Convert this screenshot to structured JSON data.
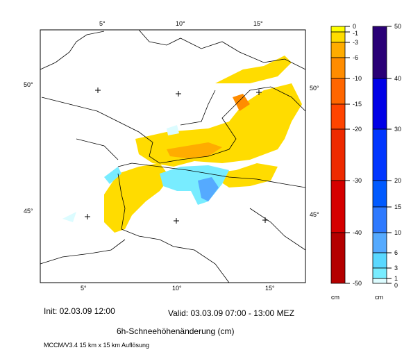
{
  "map": {
    "top_lon_labels": [
      "5°",
      "10°",
      "15°"
    ],
    "bottom_lon_labels": [
      "5°",
      "10°",
      "15°"
    ],
    "left_lat_labels": [
      "50°",
      "45°"
    ],
    "right_lat_labels": [
      "50°",
      "45°"
    ]
  },
  "legend_negative": {
    "unit": "cm",
    "ticks": [
      "0",
      "-1",
      "-3",
      "-6",
      "-10",
      "-15",
      "-20",
      "-30",
      "-40",
      "-50"
    ],
    "colors": [
      "#ffff00",
      "#ffdc00",
      "#ffac00",
      "#ff8c00",
      "#ff6600",
      "#ff4400",
      "#ee2a00",
      "#d50000",
      "#b40000"
    ]
  },
  "legend_positive": {
    "unit": "cm",
    "ticks": [
      "50",
      "40",
      "30",
      "20",
      "15",
      "10",
      "6",
      "3",
      "1",
      "0"
    ],
    "colors": [
      "#2a0077",
      "#0000e6",
      "#0036ff",
      "#005aff",
      "#2e7aff",
      "#55aaff",
      "#5ad8ff",
      "#78ecff",
      "#dcfcff"
    ]
  },
  "footer": {
    "init": "Init: 02.03.09 12:00",
    "valid": "Valid: 03.03.09 07:00 - 13:00 MEZ",
    "title": "6h-Schneehöhenänderung (cm)",
    "model": "MCCM/V3.4 15 km x 15 km Auflösung"
  }
}
